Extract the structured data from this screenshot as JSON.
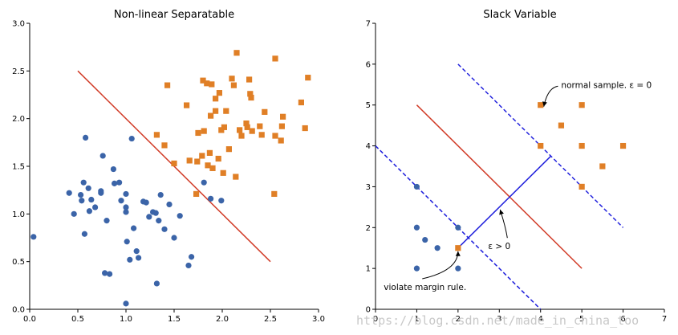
{
  "chart_data": [
    {
      "type": "scatter",
      "title": "Non-linear Separatable",
      "xlim": [
        0.0,
        3.0
      ],
      "ylim": [
        0.0,
        3.0
      ],
      "xticks": [
        "0.0",
        "0.5",
        "1.0",
        "1.5",
        "2.0",
        "2.5",
        "3.0"
      ],
      "yticks": [
        "0.0",
        "0.5",
        "1.0",
        "1.5",
        "2.0",
        "2.5",
        "3.0"
      ],
      "grid": false,
      "series": [
        {
          "marker": "circle",
          "color": "#3b64a8",
          "points": [
            [
              0.04,
              0.76
            ],
            [
              0.41,
              1.22
            ],
            [
              0.46,
              1.0
            ],
            [
              0.53,
              1.2
            ],
            [
              0.54,
              1.14
            ],
            [
              0.56,
              1.33
            ],
            [
              0.57,
              0.79
            ],
            [
              0.58,
              1.8
            ],
            [
              0.61,
              1.27
            ],
            [
              0.62,
              1.03
            ],
            [
              0.64,
              1.15
            ],
            [
              0.68,
              1.07
            ],
            [
              0.74,
              1.24
            ],
            [
              0.74,
              1.22
            ],
            [
              0.76,
              1.61
            ],
            [
              0.78,
              0.38
            ],
            [
              0.8,
              0.93
            ],
            [
              0.83,
              0.37
            ],
            [
              0.87,
              1.47
            ],
            [
              0.88,
              1.32
            ],
            [
              0.93,
              1.33
            ],
            [
              0.95,
              1.14
            ],
            [
              1.0,
              0.06
            ],
            [
              1.0,
              1.07
            ],
            [
              1.0,
              1.02
            ],
            [
              1.0,
              1.21
            ],
            [
              1.01,
              0.71
            ],
            [
              1.04,
              0.52
            ],
            [
              1.06,
              1.79
            ],
            [
              1.08,
              0.85
            ],
            [
              1.11,
              0.61
            ],
            [
              1.13,
              0.54
            ],
            [
              1.18,
              1.13
            ],
            [
              1.21,
              1.12
            ],
            [
              1.24,
              0.97
            ],
            [
              1.28,
              1.02
            ],
            [
              1.31,
              1.01
            ],
            [
              1.32,
              0.27
            ],
            [
              1.34,
              0.93
            ],
            [
              1.36,
              1.2
            ],
            [
              1.4,
              0.84
            ],
            [
              1.45,
              1.1
            ],
            [
              1.5,
              0.75
            ],
            [
              1.56,
              0.98
            ],
            [
              1.65,
              0.46
            ],
            [
              1.68,
              0.55
            ],
            [
              1.81,
              1.33
            ],
            [
              1.88,
              1.16
            ],
            [
              1.99,
              1.14
            ]
          ]
        },
        {
          "marker": "square",
          "color": "#e07f26",
          "points": [
            [
              1.32,
              1.83
            ],
            [
              1.4,
              1.72
            ],
            [
              1.43,
              2.35
            ],
            [
              1.5,
              1.53
            ],
            [
              1.63,
              2.14
            ],
            [
              1.66,
              1.56
            ],
            [
              1.73,
              1.21
            ],
            [
              1.74,
              1.55
            ],
            [
              1.75,
              1.85
            ],
            [
              1.79,
              1.61
            ],
            [
              1.8,
              2.4
            ],
            [
              1.81,
              1.87
            ],
            [
              1.84,
              2.37
            ],
            [
              1.85,
              1.51
            ],
            [
              1.87,
              1.64
            ],
            [
              1.88,
              2.03
            ],
            [
              1.89,
              2.36
            ],
            [
              1.9,
              1.48
            ],
            [
              1.93,
              2.21
            ],
            [
              1.93,
              2.08
            ],
            [
              1.96,
              1.58
            ],
            [
              1.97,
              2.27
            ],
            [
              1.99,
              1.88
            ],
            [
              2.01,
              1.43
            ],
            [
              2.02,
              1.91
            ],
            [
              2.04,
              2.08
            ],
            [
              2.07,
              1.68
            ],
            [
              2.1,
              2.42
            ],
            [
              2.12,
              2.35
            ],
            [
              2.14,
              1.39
            ],
            [
              2.15,
              2.69
            ],
            [
              2.18,
              1.88
            ],
            [
              2.2,
              1.82
            ],
            [
              2.25,
              1.95
            ],
            [
              2.26,
              1.91
            ],
            [
              2.28,
              2.41
            ],
            [
              2.29,
              2.26
            ],
            [
              2.3,
              2.22
            ],
            [
              2.31,
              1.87
            ],
            [
              2.39,
              1.92
            ],
            [
              2.41,
              1.83
            ],
            [
              2.44,
              2.07
            ],
            [
              2.54,
              1.21
            ],
            [
              2.55,
              2.63
            ],
            [
              2.55,
              1.82
            ],
            [
              2.61,
              1.77
            ],
            [
              2.62,
              1.92
            ],
            [
              2.63,
              2.02
            ],
            [
              2.82,
              2.17
            ],
            [
              2.86,
              1.9
            ],
            [
              2.89,
              2.43
            ]
          ]
        }
      ],
      "lines": [
        {
          "color": "#d13b27",
          "points": [
            [
              0.5,
              2.5
            ],
            [
              2.5,
              0.5
            ]
          ]
        }
      ]
    },
    {
      "type": "scatter",
      "title": "Slack Variable",
      "xlim": [
        0,
        7
      ],
      "ylim": [
        0,
        7
      ],
      "xticks": [
        "0",
        "1",
        "2",
        "3",
        "4",
        "5",
        "6",
        "7"
      ],
      "yticks": [
        "0",
        "1",
        "2",
        "3",
        "4",
        "5",
        "6",
        "7"
      ],
      "grid": false,
      "series": [
        {
          "marker": "circle",
          "color": "#3b64a8",
          "points": [
            [
              1,
              3
            ],
            [
              1,
              2
            ],
            [
              1.2,
              1.7
            ],
            [
              1.5,
              1.5
            ],
            [
              1,
              1
            ],
            [
              2,
              2
            ],
            [
              2,
              1
            ]
          ]
        },
        {
          "marker": "square",
          "color": "#e07f26",
          "points": [
            [
              4,
              5
            ],
            [
              5,
              5
            ],
            [
              4.5,
              4.5
            ],
            [
              4,
              4
            ],
            [
              5,
              4
            ],
            [
              6,
              4
            ],
            [
              5.5,
              3.5
            ],
            [
              5,
              3
            ],
            [
              2,
              1.5
            ]
          ]
        }
      ],
      "lines": [
        {
          "color": "#d13b27",
          "style": "solid",
          "points": [
            [
              1,
              5
            ],
            [
              5,
              1
            ]
          ]
        },
        {
          "color": "#1f1fdc",
          "style": "dashed",
          "points": [
            [
              0,
              4
            ],
            [
              4,
              0
            ]
          ]
        },
        {
          "color": "#1f1fdc",
          "style": "dashed",
          "points": [
            [
              2,
              6
            ],
            [
              6,
              2
            ]
          ]
        },
        {
          "color": "#1f1fdc",
          "style": "solid",
          "points": [
            [
              2,
              1.5
            ],
            [
              4.25,
              3.75
            ]
          ]
        }
      ],
      "annotations": [
        {
          "text": "normal sample. ε = 0",
          "point": [
            4,
            5
          ],
          "text_at": [
            4.5,
            5.5
          ]
        },
        {
          "text": "ε > 0",
          "point": [
            3,
            2.5
          ],
          "text_at": [
            3,
            1.55
          ]
        },
        {
          "text": "violate margin rule.",
          "point": [
            2,
            1.5
          ],
          "text_at": [
            0.2,
            0.55
          ]
        }
      ]
    }
  ],
  "watermark": "https://blog.csdn.net/made_in_china_too"
}
